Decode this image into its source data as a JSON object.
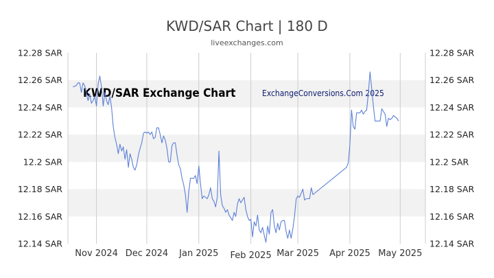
{
  "page": {
    "title": "KWD/SAR Chart | 180 D",
    "subtitle": "liveexchanges.com"
  },
  "watermarks": {
    "left": "KWD/SAR Exchange Chart",
    "right": "ExchangeConversions.Com 2025"
  },
  "colors": {
    "line": "#5b7fd6",
    "band": "#f2f2f2",
    "grid": "#cccccc"
  },
  "chart_data": {
    "type": "line",
    "title": "KWD/SAR Chart | 180 D",
    "ylim": [
      12.14,
      12.28
    ],
    "y_ticks": [
      {
        "value": 12.28,
        "label": "12.28 SAR"
      },
      {
        "value": 12.26,
        "label": "12.26 SAR"
      },
      {
        "value": 12.24,
        "label": "12.24 SAR"
      },
      {
        "value": 12.22,
        "label": "12.22 SAR"
      },
      {
        "value": 12.2,
        "label": "12.2 SAR"
      },
      {
        "value": 12.18,
        "label": "12.18 SAR"
      },
      {
        "value": 12.16,
        "label": "12.16 SAR"
      },
      {
        "value": 12.14,
        "label": "12.14 SAR"
      }
    ],
    "x_start": "2024-10-15",
    "x_end": "2025-05-16",
    "x_ticks": [
      {
        "date": "2024-11-01",
        "label": "Nov 2024"
      },
      {
        "date": "2024-12-01",
        "label": "Dec 2024"
      },
      {
        "date": "2025-01-01",
        "label": "Jan 2025"
      },
      {
        "date": "2025-02-01",
        "label": "Feb 2025"
      },
      {
        "date": "2025-03-01",
        "label": "Mar 2025"
      },
      {
        "date": "2025-04-01",
        "label": "Apr 2025"
      },
      {
        "date": "2025-05-01",
        "label": "May 2025"
      }
    ],
    "grid": true,
    "series": [
      {
        "values": [
          [
            "2024-10-18",
            12.255
          ],
          [
            "2024-10-20",
            12.256
          ],
          [
            "2024-10-21",
            12.258
          ],
          [
            "2024-10-22",
            12.258
          ],
          [
            "2024-10-23",
            12.251
          ],
          [
            "2024-10-24",
            12.258
          ],
          [
            "2024-10-25",
            12.256
          ],
          [
            "2024-10-26",
            12.25
          ],
          [
            "2024-10-27",
            12.245
          ],
          [
            "2024-10-28",
            12.25
          ],
          [
            "2024-10-29",
            12.243
          ],
          [
            "2024-10-30",
            12.245
          ],
          [
            "2024-10-31",
            12.248
          ],
          [
            "2024-11-01",
            12.241
          ],
          [
            "2024-11-02",
            12.257
          ],
          [
            "2024-11-03",
            12.263
          ],
          [
            "2024-11-04",
            12.255
          ],
          [
            "2024-11-05",
            12.241
          ],
          [
            "2024-11-06",
            12.251
          ],
          [
            "2024-11-07",
            12.245
          ],
          [
            "2024-11-08",
            12.242
          ],
          [
            "2024-11-09",
            12.248
          ],
          [
            "2024-11-10",
            12.24
          ],
          [
            "2024-11-11",
            12.226
          ],
          [
            "2024-11-12",
            12.218
          ],
          [
            "2024-11-13",
            12.213
          ],
          [
            "2024-11-14",
            12.206
          ],
          [
            "2024-11-15",
            12.213
          ],
          [
            "2024-11-16",
            12.208
          ],
          [
            "2024-11-17",
            12.211
          ],
          [
            "2024-11-18",
            12.202
          ],
          [
            "2024-11-19",
            12.209
          ],
          [
            "2024-11-20",
            12.196
          ],
          [
            "2024-11-21",
            12.206
          ],
          [
            "2024-11-22",
            12.202
          ],
          [
            "2024-11-23",
            12.196
          ],
          [
            "2024-11-24",
            12.194
          ],
          [
            "2024-11-25",
            12.198
          ],
          [
            "2024-11-26",
            12.205
          ],
          [
            "2024-11-27",
            12.21
          ],
          [
            "2024-11-28",
            12.214
          ],
          [
            "2024-11-29",
            12.221
          ],
          [
            "2024-11-30",
            12.222
          ],
          [
            "2024-12-01",
            12.221
          ],
          [
            "2024-12-02",
            12.222
          ],
          [
            "2024-12-03",
            12.22
          ],
          [
            "2024-12-04",
            12.222
          ],
          [
            "2024-12-05",
            12.217
          ],
          [
            "2024-12-06",
            12.218
          ],
          [
            "2024-12-07",
            12.225
          ],
          [
            "2024-12-08",
            12.225
          ],
          [
            "2024-12-09",
            12.22
          ],
          [
            "2024-12-10",
            12.214
          ],
          [
            "2024-12-11",
            12.219
          ],
          [
            "2024-12-12",
            12.216
          ],
          [
            "2024-12-13",
            12.21
          ],
          [
            "2024-12-14",
            12.2
          ],
          [
            "2024-12-15",
            12.2
          ],
          [
            "2024-12-16",
            12.212
          ],
          [
            "2024-12-17",
            12.214
          ],
          [
            "2024-12-18",
            12.214
          ],
          [
            "2024-12-19",
            12.205
          ],
          [
            "2024-12-20",
            12.198
          ],
          [
            "2024-12-21",
            12.195
          ],
          [
            "2024-12-22",
            12.188
          ],
          [
            "2024-12-23",
            12.183
          ],
          [
            "2024-12-24",
            12.176
          ],
          [
            "2024-12-25",
            12.163
          ],
          [
            "2024-12-26",
            12.178
          ],
          [
            "2024-12-27",
            12.188
          ],
          [
            "2024-12-28",
            12.188
          ],
          [
            "2024-12-29",
            12.188
          ],
          [
            "2024-12-30",
            12.19
          ],
          [
            "2024-12-31",
            12.184
          ],
          [
            "2025-01-01",
            12.197
          ],
          [
            "2025-01-02",
            12.184
          ],
          [
            "2025-01-03",
            12.173
          ],
          [
            "2025-01-04",
            12.175
          ],
          [
            "2025-01-05",
            12.174
          ],
          [
            "2025-01-06",
            12.173
          ],
          [
            "2025-01-07",
            12.176
          ],
          [
            "2025-01-08",
            12.181
          ],
          [
            "2025-01-09",
            12.173
          ],
          [
            "2025-01-10",
            12.171
          ],
          [
            "2025-01-11",
            12.167
          ],
          [
            "2025-01-12",
            12.174
          ],
          [
            "2025-01-13",
            12.208
          ],
          [
            "2025-01-14",
            12.176
          ],
          [
            "2025-01-15",
            12.168
          ],
          [
            "2025-01-16",
            12.166
          ],
          [
            "2025-01-17",
            12.163
          ],
          [
            "2025-01-18",
            12.165
          ],
          [
            "2025-01-19",
            12.161
          ],
          [
            "2025-01-20",
            12.159
          ],
          [
            "2025-01-21",
            12.157
          ],
          [
            "2025-01-22",
            12.163
          ],
          [
            "2025-01-23",
            12.16
          ],
          [
            "2025-01-24",
            12.169
          ],
          [
            "2025-01-25",
            12.173
          ],
          [
            "2025-01-26",
            12.17
          ],
          [
            "2025-01-27",
            12.172
          ],
          [
            "2025-01-28",
            12.174
          ],
          [
            "2025-01-29",
            12.165
          ],
          [
            "2025-01-30",
            12.16
          ],
          [
            "2025-01-31",
            12.157
          ],
          [
            "2025-02-01",
            12.158
          ],
          [
            "2025-02-02",
            12.145
          ],
          [
            "2025-02-03",
            12.156
          ],
          [
            "2025-02-04",
            12.153
          ],
          [
            "2025-02-05",
            12.161
          ],
          [
            "2025-02-06",
            12.15
          ],
          [
            "2025-02-07",
            12.148
          ],
          [
            "2025-02-08",
            12.152
          ],
          [
            "2025-02-09",
            12.146
          ],
          [
            "2025-02-10",
            12.141
          ],
          [
            "2025-02-11",
            12.153
          ],
          [
            "2025-02-12",
            12.147
          ],
          [
            "2025-02-13",
            12.163
          ],
          [
            "2025-02-14",
            12.165
          ],
          [
            "2025-02-15",
            12.153
          ],
          [
            "2025-02-16",
            12.148
          ],
          [
            "2025-02-17",
            12.155
          ],
          [
            "2025-02-18",
            12.15
          ],
          [
            "2025-02-19",
            12.156
          ],
          [
            "2025-02-20",
            12.157
          ],
          [
            "2025-02-21",
            12.157
          ],
          [
            "2025-02-22",
            12.149
          ],
          [
            "2025-02-23",
            12.144
          ],
          [
            "2025-02-24",
            12.15
          ],
          [
            "2025-02-25",
            12.144
          ],
          [
            "2025-02-26",
            12.151
          ],
          [
            "2025-02-27",
            12.16
          ],
          [
            "2025-02-28",
            12.173
          ],
          [
            "2025-03-01",
            12.175
          ],
          [
            "2025-03-02",
            12.174
          ],
          [
            "2025-03-03",
            12.177
          ],
          [
            "2025-03-04",
            12.18
          ],
          [
            "2025-03-05",
            12.172
          ],
          [
            "2025-03-06",
            12.173
          ],
          [
            "2025-03-07",
            12.173
          ],
          [
            "2025-03-08",
            12.173
          ],
          [
            "2025-03-09",
            12.181
          ],
          [
            "2025-03-10",
            12.176
          ],
          [
            "2025-03-11",
            12.177
          ],
          [
            "2025-03-30",
            12.196
          ],
          [
            "2025-03-31",
            12.199
          ],
          [
            "2025-04-01",
            12.212
          ],
          [
            "2025-04-02",
            12.238
          ],
          [
            "2025-04-03",
            12.226
          ],
          [
            "2025-04-04",
            12.224
          ],
          [
            "2025-04-05",
            12.236
          ],
          [
            "2025-04-06",
            12.236
          ],
          [
            "2025-04-07",
            12.236
          ],
          [
            "2025-04-08",
            12.238
          ],
          [
            "2025-04-09",
            12.235
          ],
          [
            "2025-04-10",
            12.237
          ],
          [
            "2025-04-11",
            12.238
          ],
          [
            "2025-04-12",
            12.25
          ],
          [
            "2025-04-13",
            12.266
          ],
          [
            "2025-04-14",
            12.254
          ],
          [
            "2025-04-15",
            12.241
          ],
          [
            "2025-04-16",
            12.23
          ],
          [
            "2025-04-17",
            12.23
          ],
          [
            "2025-04-18",
            12.23
          ],
          [
            "2025-04-19",
            12.23
          ],
          [
            "2025-04-20",
            12.239
          ],
          [
            "2025-04-21",
            12.237
          ],
          [
            "2025-04-22",
            12.235
          ],
          [
            "2025-04-23",
            12.226
          ],
          [
            "2025-04-24",
            12.232
          ],
          [
            "2025-04-25",
            12.231
          ],
          [
            "2025-04-26",
            12.232
          ],
          [
            "2025-04-27",
            12.234
          ],
          [
            "2025-04-28",
            12.233
          ],
          [
            "2025-04-29",
            12.232
          ],
          [
            "2025-04-30",
            12.23
          ]
        ]
      }
    ]
  }
}
